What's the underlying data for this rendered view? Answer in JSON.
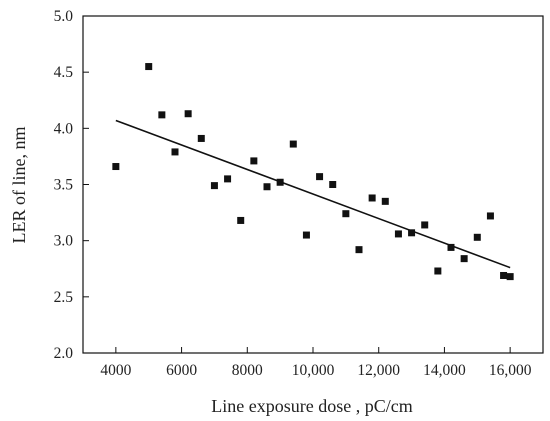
{
  "chart_data": {
    "type": "scatter",
    "title": "",
    "xlabel": "Line exposure dose , pC/cm",
    "ylabel": "LER of line, nm",
    "xlim": [
      3000,
      17000
    ],
    "ylim": [
      2.0,
      5.0
    ],
    "x_ticks": [
      4000,
      6000,
      8000,
      10000,
      12000,
      14000,
      16000
    ],
    "x_tick_labels": [
      "4000",
      "6000",
      "8000",
      "10,000",
      "12,000",
      "14,000",
      "16,000"
    ],
    "y_ticks": [
      2.0,
      2.5,
      3.0,
      3.5,
      4.0,
      4.5,
      5.0
    ],
    "y_tick_labels": [
      "2.0",
      "2.5",
      "3.0",
      "3.5",
      "4.0",
      "4.5",
      "5.0"
    ],
    "grid": false,
    "marker": "square",
    "marker_color": "#111111",
    "points": [
      {
        "x": 4000,
        "y": 3.66
      },
      {
        "x": 5000,
        "y": 4.55
      },
      {
        "x": 5400,
        "y": 4.12
      },
      {
        "x": 5800,
        "y": 3.79
      },
      {
        "x": 6200,
        "y": 4.13
      },
      {
        "x": 6600,
        "y": 3.91
      },
      {
        "x": 7000,
        "y": 3.49
      },
      {
        "x": 7400,
        "y": 3.55
      },
      {
        "x": 7800,
        "y": 3.18
      },
      {
        "x": 8200,
        "y": 3.71
      },
      {
        "x": 8600,
        "y": 3.48
      },
      {
        "x": 9000,
        "y": 3.52
      },
      {
        "x": 9400,
        "y": 3.86
      },
      {
        "x": 9800,
        "y": 3.05
      },
      {
        "x": 10200,
        "y": 3.57
      },
      {
        "x": 10600,
        "y": 3.5
      },
      {
        "x": 11000,
        "y": 3.24
      },
      {
        "x": 11400,
        "y": 2.92
      },
      {
        "x": 11800,
        "y": 3.38
      },
      {
        "x": 12200,
        "y": 3.35
      },
      {
        "x": 12600,
        "y": 3.06
      },
      {
        "x": 13000,
        "y": 3.07
      },
      {
        "x": 13400,
        "y": 3.14
      },
      {
        "x": 13800,
        "y": 2.73
      },
      {
        "x": 14200,
        "y": 2.94
      },
      {
        "x": 14600,
        "y": 2.84
      },
      {
        "x": 15000,
        "y": 3.03
      },
      {
        "x": 15400,
        "y": 3.22
      },
      {
        "x": 15800,
        "y": 2.69
      },
      {
        "x": 16000,
        "y": 2.68
      }
    ],
    "fit_line": {
      "x": [
        4000,
        16000
      ],
      "y": [
        4.07,
        2.76
      ]
    }
  }
}
